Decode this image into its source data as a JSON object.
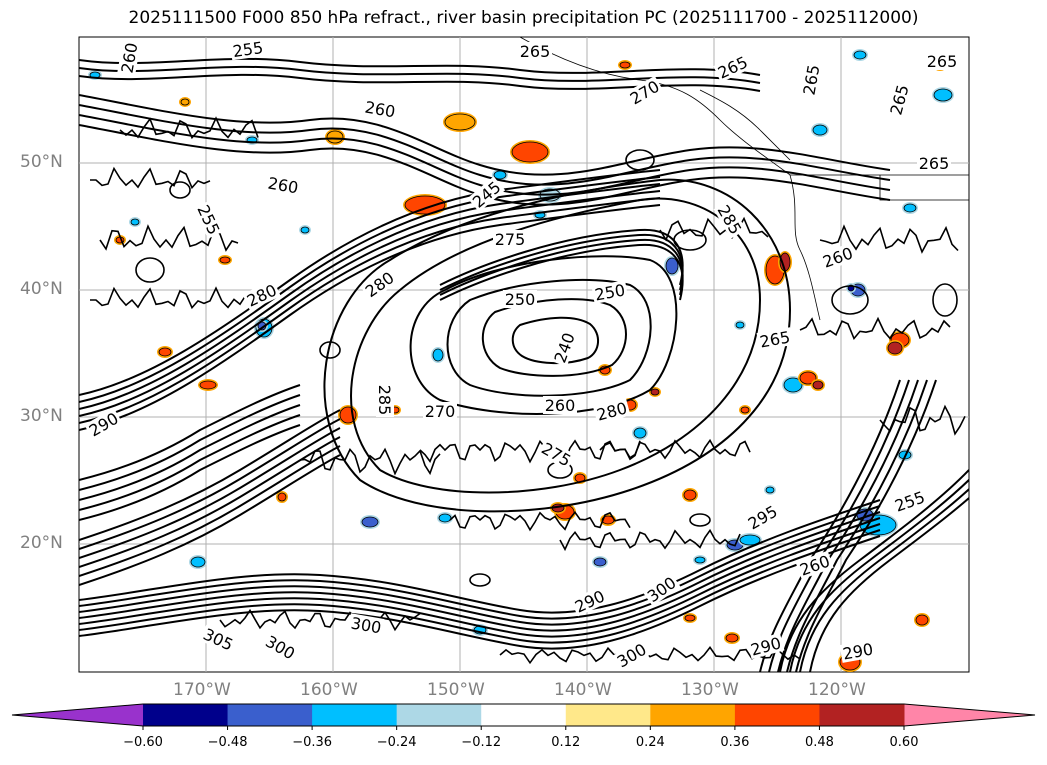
{
  "title": "2025111500 F000 850 hPa refract., river basin precipitation PC (2025111700 - 2025112000)",
  "map": {
    "lat_labels": [
      "50°N",
      "40°N",
      "30°N",
      "20°N"
    ],
    "lon_labels": [
      "170°W",
      "160°W",
      "150°W",
      "140°W",
      "130°W",
      "120°W"
    ],
    "contour_labels": [
      "255",
      "265",
      "265",
      "265",
      "270",
      "260",
      "260",
      "265",
      "265",
      "260",
      "255",
      "245",
      "275",
      "285",
      "280",
      "250",
      "280",
      "240",
      "250",
      "270",
      "260",
      "280",
      "265",
      "260",
      "285",
      "265",
      "290",
      "275",
      "295",
      "255",
      "260",
      "290",
      "300",
      "300",
      "305",
      "300",
      "300",
      "290",
      "290"
    ]
  },
  "colorbar": {
    "ticks": [
      "−0.60",
      "−0.48",
      "−0.36",
      "−0.24",
      "−0.12",
      "0.12",
      "0.24",
      "0.36",
      "0.48",
      "0.60"
    ],
    "colors": {
      "under": "#9932cc",
      "bins": [
        "#00008b",
        "#3a5fcd",
        "#00bfff",
        "#add8e6",
        "#ffffff",
        "#ffe88a",
        "#ffa500",
        "#ff4500",
        "#b22222"
      ],
      "over": "#ff85a8"
    }
  }
}
